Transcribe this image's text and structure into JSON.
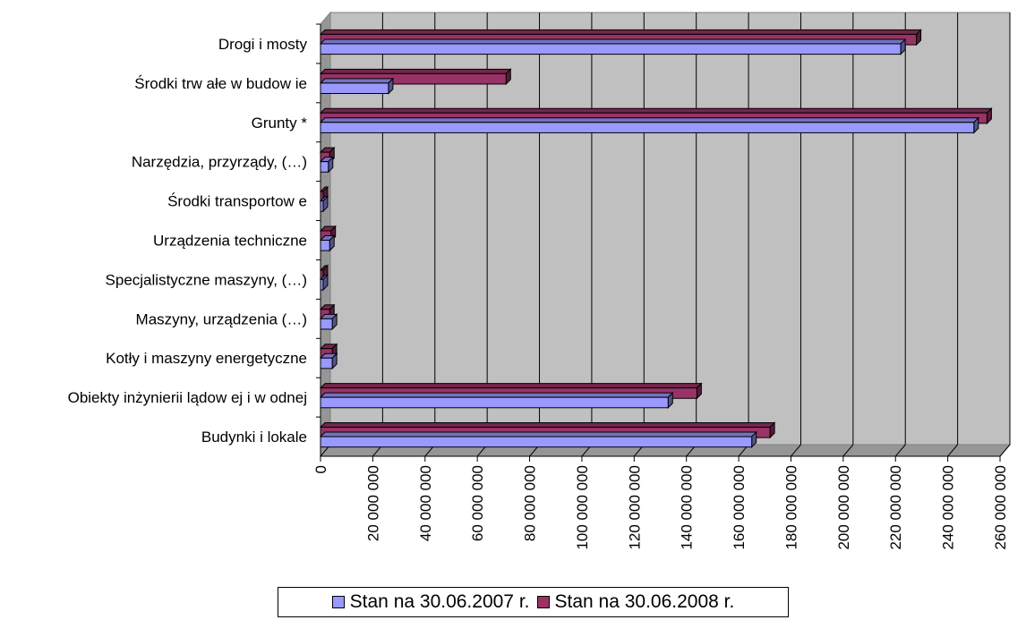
{
  "chart_data": {
    "type": "bar",
    "orientation": "horizontal",
    "categories": [
      "Budynki i lokale",
      "Obiekty inżynierii lądow ej i w odnej",
      "Kotły i maszyny energetyczne",
      "Maszyny, urządzenia (…)",
      "Specjalistyczne maszyny, (…)",
      "Urządzenia techniczne",
      "Środki transportow e",
      "Narzędzia, przyrządy, (…)",
      "Grunty *",
      "Środki trw ałe w  budow ie",
      "Drogi i mosty"
    ],
    "series": [
      {
        "name": "Stan na 30.06.2007 r.",
        "color": "#9999ff",
        "values": [
          165000000,
          133000000,
          4500000,
          4500000,
          1000000,
          3500000,
          1000000,
          3000000,
          250000000,
          26000000,
          222000000
        ]
      },
      {
        "name": "Stan na 30.06.2008 r.",
        "color": "#993366",
        "values": [
          172000000,
          144000000,
          4500000,
          3500000,
          1000000,
          4000000,
          1000000,
          3500000,
          255000000,
          71000000,
          228000000
        ]
      }
    ],
    "xlim": [
      0,
      260000000
    ],
    "xticks": [
      "0",
      "20 000 000",
      "40 000 000",
      "60 000 000",
      "80 000 000",
      "100 000 000",
      "120 000 000",
      "140 000 000",
      "160 000 000",
      "180 000 000",
      "200 000 000",
      "220 000 000",
      "240 000 000",
      "260 000 000"
    ],
    "grid": true,
    "legend_position": "bottom"
  }
}
